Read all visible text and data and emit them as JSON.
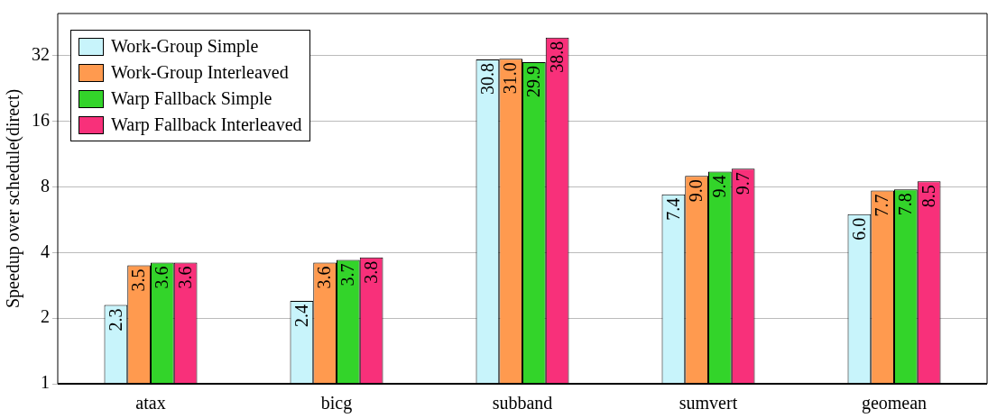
{
  "chart_data": {
    "type": "bar",
    "ylabel": "Speedup over schedule(direct)",
    "categories": [
      "atax",
      "bicg",
      "subband",
      "sumvert",
      "geomean"
    ],
    "series": [
      {
        "name": "Work-Group Simple",
        "color": "#c8f4fb",
        "values": [
          2.3,
          2.4,
          30.8,
          7.4,
          6.0
        ],
        "value_labels": [
          "2.3",
          "2.4",
          "30.8",
          "7.4",
          "6.0"
        ]
      },
      {
        "name": "Work-Group Interleaved",
        "color": "#ff9a4f",
        "values": [
          3.5,
          3.6,
          31.0,
          9.0,
          7.7
        ],
        "value_labels": [
          "3.5",
          "3.6",
          "31.0",
          "9.0",
          "7.7"
        ]
      },
      {
        "name": "Warp Fallback Simple",
        "color": "#33d42a",
        "values": [
          3.6,
          3.7,
          29.9,
          9.4,
          7.8
        ],
        "value_labels": [
          "3.6",
          "3.7",
          "29.9",
          "9.4",
          "7.8"
        ]
      },
      {
        "name": "Warp Fallback Interleaved",
        "color": "#f8307a",
        "values": [
          3.6,
          3.8,
          38.8,
          9.7,
          8.5
        ],
        "value_labels": [
          "3.6",
          "3.8",
          "38.8",
          "9.7",
          "8.5"
        ]
      }
    ],
    "log": "y",
    "ylim": [
      1,
      50
    ],
    "yticks": [
      1,
      2,
      4,
      8,
      16,
      32
    ],
    "grid": "y",
    "legend": "top left"
  }
}
